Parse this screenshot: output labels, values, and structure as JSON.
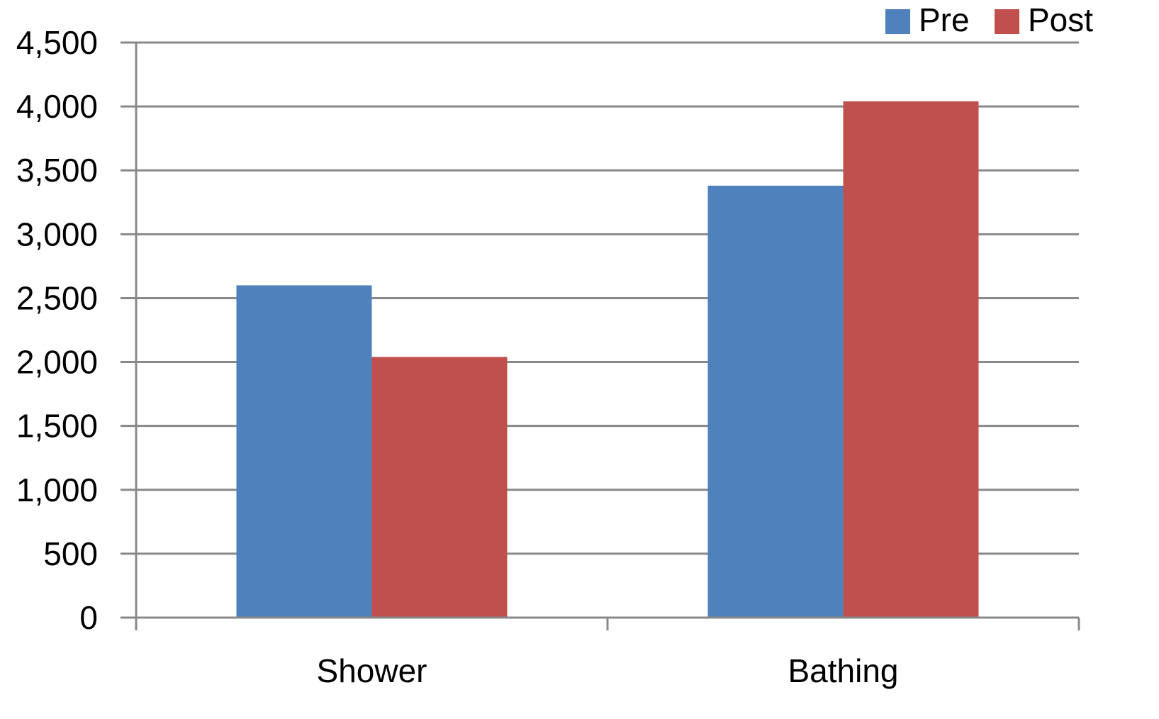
{
  "chart_data": {
    "type": "bar",
    "title": "",
    "xlabel": "",
    "ylabel": "",
    "categories": [
      "Shower",
      "Bathing"
    ],
    "series": [
      {
        "name": "Pre",
        "values": [
          2600,
          3380
        ],
        "color": "#4F81BD"
      },
      {
        "name": "Post",
        "values": [
          2040,
          4040
        ],
        "color": "#C0504D"
      }
    ],
    "ylim": [
      0,
      4500
    ],
    "yticks": [
      0,
      500,
      1000,
      1500,
      2000,
      2500,
      3000,
      3500,
      4000,
      4500
    ],
    "ytick_labels": [
      "0",
      "500",
      "1,000",
      "1,500",
      "2,000",
      "2,500",
      "3,000",
      "3,500",
      "4,000",
      "4,500"
    ],
    "grid": true,
    "legend_position": "top-right",
    "axis_color": "#898989",
    "grid_color": "#898989"
  }
}
